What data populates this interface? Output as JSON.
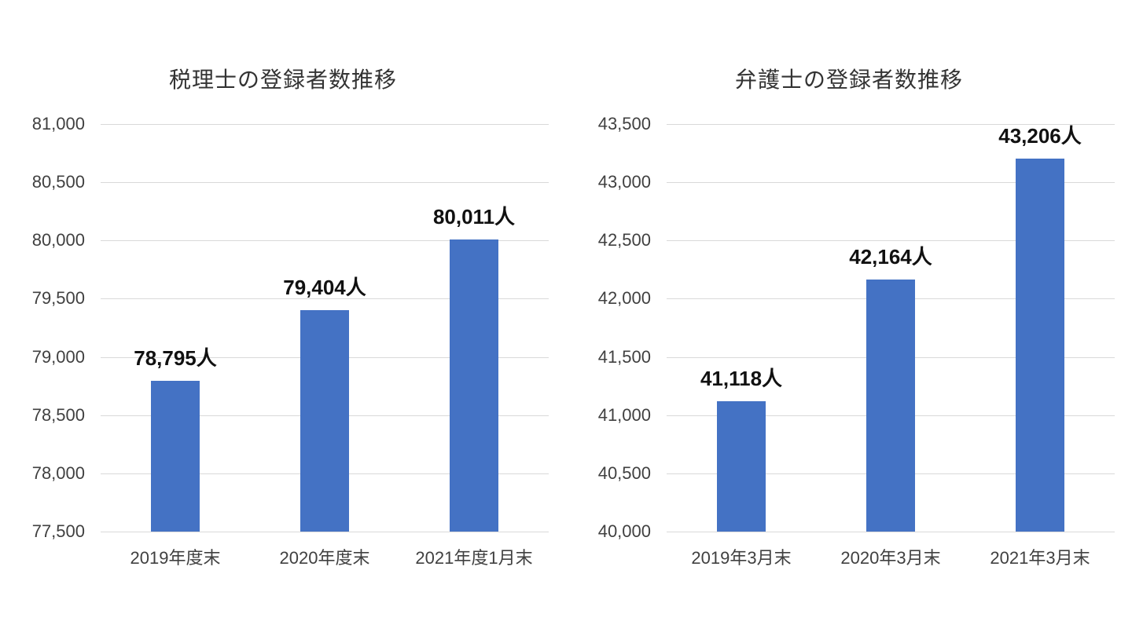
{
  "page": {
    "background": "#ffffff"
  },
  "chart_data": [
    {
      "type": "bar",
      "title": "税理士の登録者数推移",
      "categories": [
        "2019年度末",
        "2020年度末",
        "2021年度1月末"
      ],
      "values": [
        78795,
        79404,
        80011
      ],
      "data_labels": [
        "78,795人",
        "79,404人",
        "80,011人"
      ],
      "xlabel": "",
      "ylabel": "",
      "ylim": [
        77500,
        81000
      ],
      "ytick_step": 500,
      "ytick_labels": [
        "81,000",
        "80,500",
        "80,000",
        "79,500",
        "79,000",
        "78,500",
        "78,000",
        "77,500"
      ],
      "grid": true,
      "legend": "none",
      "bar_color": "#4472C4",
      "gridline_color": "#D9D9D9"
    },
    {
      "type": "bar",
      "title": "弁護士の登録者数推移",
      "categories": [
        "2019年3月末",
        "2020年3月末",
        "2021年3月末"
      ],
      "values": [
        41118,
        42164,
        43206
      ],
      "data_labels": [
        "41,118人",
        "42,164人",
        "43,206人"
      ],
      "xlabel": "",
      "ylabel": "",
      "ylim": [
        40000,
        43500
      ],
      "ytick_step": 500,
      "ytick_labels": [
        "43,500",
        "43,000",
        "42,500",
        "42,000",
        "41,500",
        "41,000",
        "40,500",
        "40,000"
      ],
      "grid": true,
      "legend": "none",
      "bar_color": "#4472C4",
      "gridline_color": "#D9D9D9"
    }
  ]
}
